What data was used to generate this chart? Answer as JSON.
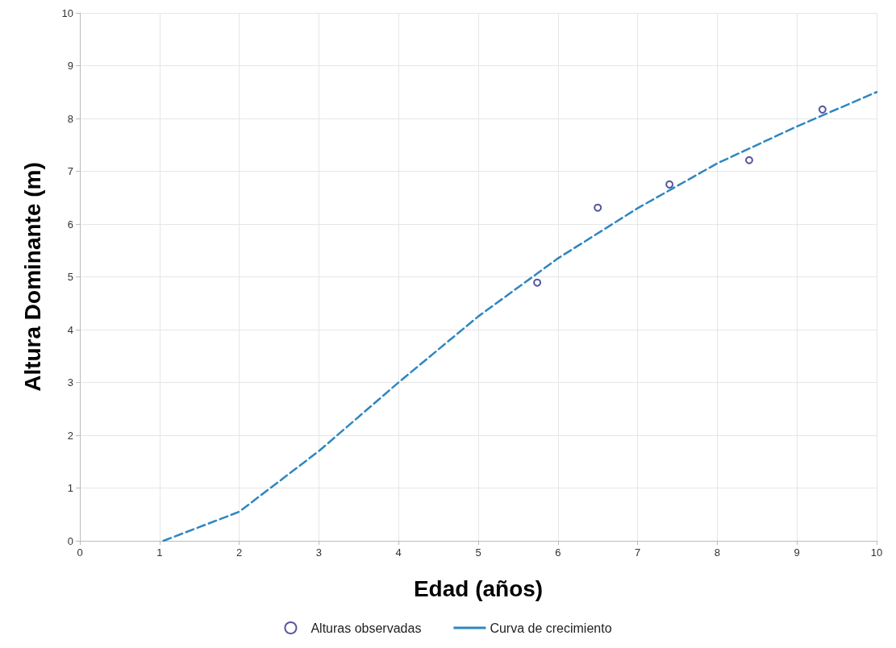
{
  "chart_data": {
    "type": "scatter",
    "xlabel": "Edad (años)",
    "ylabel": "Altura Dominante (m)",
    "xlim": [
      0,
      10
    ],
    "xticks": [
      0,
      1,
      2,
      3,
      4,
      5,
      6,
      7,
      8,
      9,
      10
    ],
    "ylim": [
      0,
      10
    ],
    "yticks": [
      0,
      1,
      2,
      3,
      4,
      5,
      6,
      7,
      8,
      9,
      10
    ],
    "grid": true,
    "legend": "bottom",
    "series": [
      {
        "name": "Alturas observadas",
        "color": "#2a2a8a",
        "marker": "circle",
        "x": [
          5.74,
          6.5,
          7.4,
          8.4,
          9.32
        ],
        "values": [
          4.89,
          6.31,
          6.75,
          7.21,
          8.17
        ]
      },
      {
        "name": "Curva de crecimiento",
        "type": "line",
        "color": "#2e86c1",
        "marker": "none",
        "line_style": "dashed",
        "x": [
          1.05,
          2,
          3,
          4,
          5,
          6,
          7,
          8,
          9,
          10
        ],
        "values": [
          0,
          0.55,
          1.7,
          3.0,
          4.25,
          5.35,
          6.3,
          7.15,
          7.85,
          8.5
        ]
      }
    ]
  }
}
